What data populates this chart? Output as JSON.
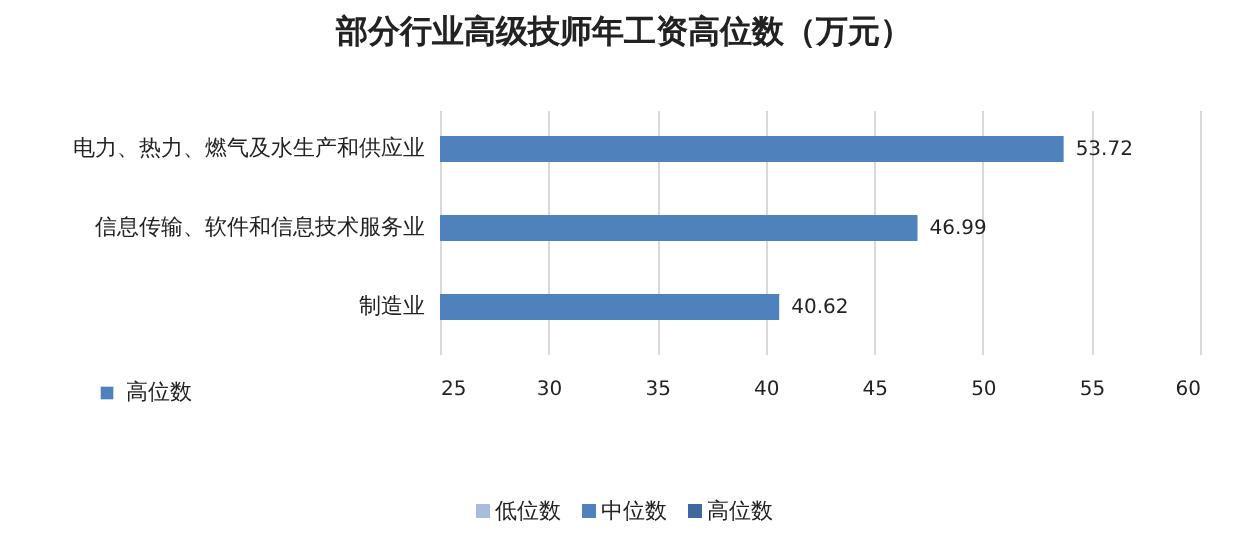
{
  "chart_data": {
    "type": "bar",
    "orientation": "horizontal",
    "title": "部分行业高级技师年工资高位数（万元）",
    "categories": [
      "电力、热力、燃气及水生产和供应业",
      "信息传输、软件和信息技术服务业",
      "制造业"
    ],
    "series": [
      {
        "name": "高位数",
        "color": "#4f81bd",
        "values": [
          53.72,
          46.99,
          40.62
        ]
      }
    ],
    "xlim": [
      25,
      60
    ],
    "xticks": [
      25,
      30,
      35,
      40,
      45,
      50,
      55,
      60
    ],
    "grid": "x",
    "data_labels": true,
    "legend": "bottom left",
    "annotations": [
      "低位数",
      "中位数",
      "高位数"
    ]
  }
}
